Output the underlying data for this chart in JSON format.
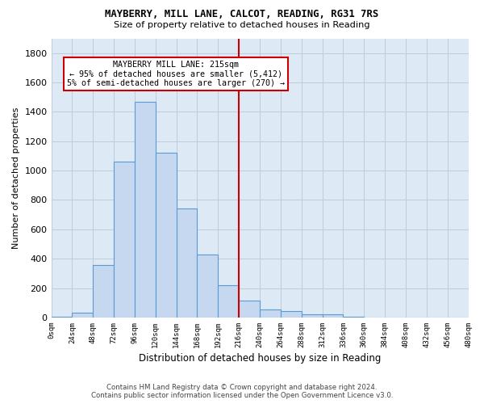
{
  "title1": "MAYBERRY, MILL LANE, CALCOT, READING, RG31 7RS",
  "title2": "Size of property relative to detached houses in Reading",
  "xlabel": "Distribution of detached houses by size in Reading",
  "ylabel": "Number of detached properties",
  "footer1": "Contains HM Land Registry data © Crown copyright and database right 2024.",
  "footer2": "Contains public sector information licensed under the Open Government Licence v3.0.",
  "bin_labels": [
    "0sqm",
    "24sqm",
    "48sqm",
    "72sqm",
    "96sqm",
    "120sqm",
    "144sqm",
    "168sqm",
    "192sqm",
    "216sqm",
    "240sqm",
    "264sqm",
    "288sqm",
    "312sqm",
    "336sqm",
    "360sqm",
    "384sqm",
    "408sqm",
    "432sqm",
    "456sqm",
    "480sqm"
  ],
  "bar_values": [
    5,
    35,
    355,
    1060,
    1470,
    1120,
    740,
    430,
    220,
    115,
    55,
    45,
    20,
    22,
    5,
    2,
    1,
    0,
    0,
    0
  ],
  "bar_color": "#c5d8ef",
  "bar_edge_color": "#5b9bd5",
  "vline_color": "#cc0000",
  "vline_sqm": 216,
  "annotation_title": "MAYBERRY MILL LANE: 215sqm",
  "annotation_line1": "← 95% of detached houses are smaller (5,412)",
  "annotation_line2": "5% of semi-detached houses are larger (270) →",
  "ylim": [
    0,
    1900
  ],
  "yticks": [
    0,
    200,
    400,
    600,
    800,
    1000,
    1200,
    1400,
    1600,
    1800
  ],
  "grid_color": "#c0ced e",
  "bg_color": "#dde9f5",
  "bin_width": 24
}
